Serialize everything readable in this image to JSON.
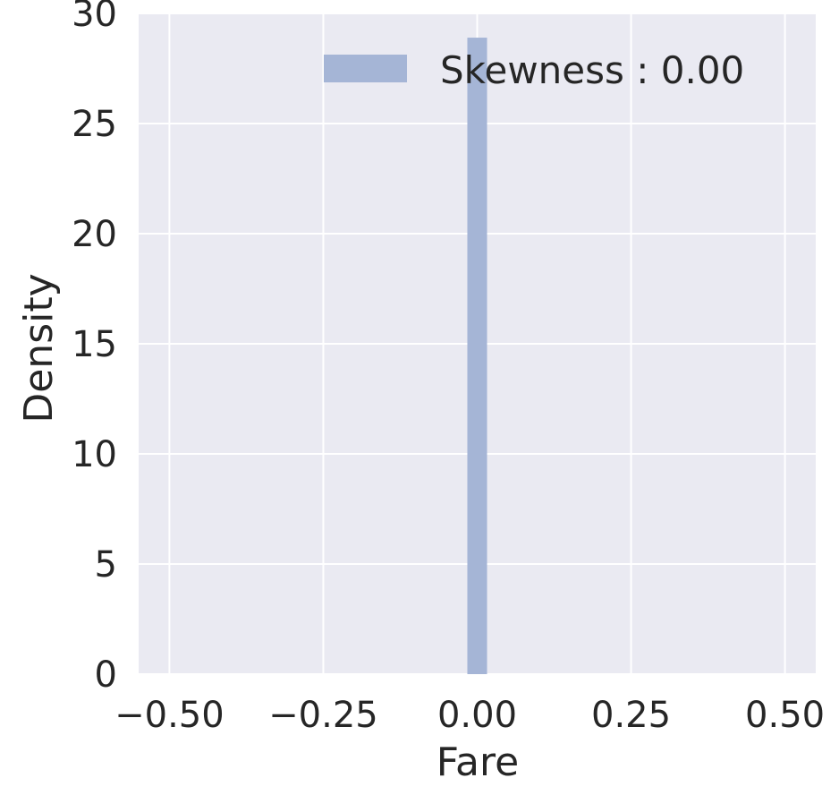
{
  "chart_data": {
    "type": "bar",
    "xlabel": "Fare",
    "ylabel": "Density",
    "xlim": [
      -0.55,
      0.55
    ],
    "ylim": [
      0,
      30
    ],
    "x_ticks": [
      -0.5,
      -0.25,
      0.0,
      0.25,
      0.5
    ],
    "x_tick_labels": [
      "−0.50",
      "−0.25",
      "0.00",
      "0.25",
      "0.50"
    ],
    "y_ticks": [
      0,
      5,
      10,
      15,
      20,
      25,
      30
    ],
    "y_tick_labels": [
      "0",
      "5",
      "10",
      "15",
      "20",
      "25",
      "30"
    ],
    "bars": [
      {
        "x_start": -0.016,
        "x_end": 0.016,
        "value": 28.9
      }
    ],
    "series": [
      {
        "name": "Skewness : 0.00",
        "color": "#a5b5d6"
      }
    ],
    "grid": true,
    "legend_position": "top-right",
    "colors": {
      "plot_background": "#eaeaf2",
      "grid": "#ffffff",
      "bar": "#a5b5d6",
      "text": "#262626"
    }
  }
}
